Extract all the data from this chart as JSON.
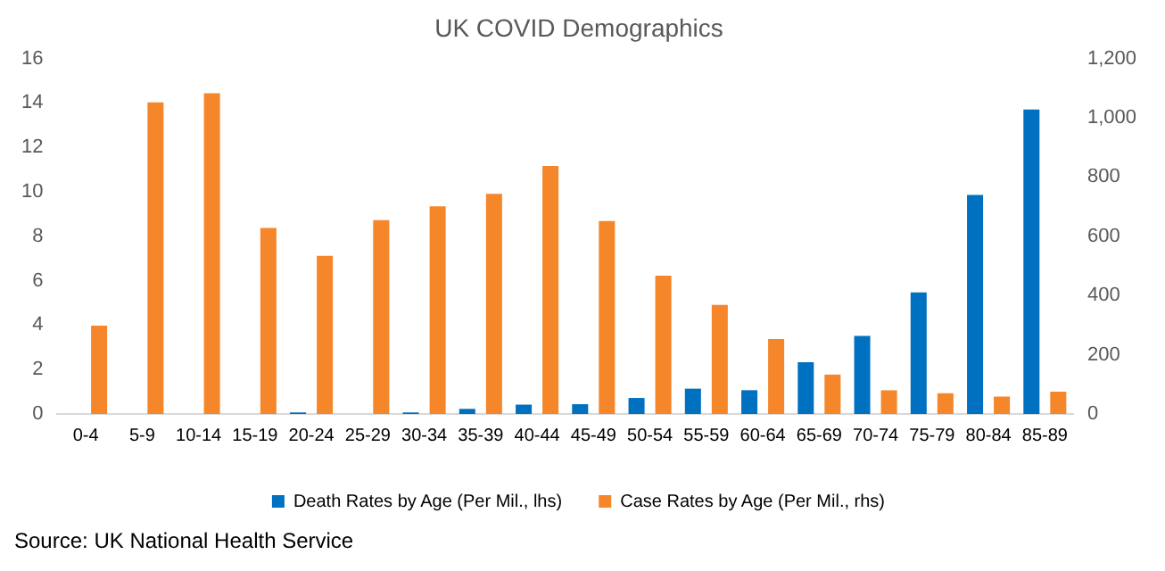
{
  "chart_data": {
    "type": "bar",
    "title": "UK COVID Demographics",
    "categories": [
      "0-4",
      "5-9",
      "10-14",
      "15-19",
      "20-24",
      "25-29",
      "30-34",
      "35-39",
      "40-44",
      "45-49",
      "50-54",
      "55-59",
      "60-64",
      "65-69",
      "70-74",
      "75-79",
      "80-84",
      "85-89"
    ],
    "series": [
      {
        "name": "Death Rates by Age (Per Mil., lhs)",
        "color": "#0070c0",
        "values": [
          0,
          0,
          0,
          0,
          0.07,
          0,
          0.07,
          0.23,
          0.42,
          0.44,
          0.72,
          1.14,
          1.07,
          2.33,
          3.51,
          5.47,
          9.86,
          13.7
        ]
      },
      {
        "name": "Case Rates by Age (Per Mil., rhs)",
        "color": "#f5862a",
        "axis": "y2",
        "values": [
          298,
          1052,
          1083,
          628,
          534,
          654,
          701,
          743,
          837,
          651,
          467,
          368,
          253,
          133,
          80,
          70,
          59,
          75
        ]
      }
    ],
    "ylim": [
      0,
      16
    ],
    "yticks": [
      0,
      2,
      4,
      6,
      8,
      10,
      12,
      14,
      16
    ],
    "y2lim": [
      0,
      1200
    ],
    "y2ticks": [
      0,
      200,
      400,
      600,
      800,
      {
        "value": 1000,
        "label": "1,000"
      },
      {
        "value": 1200,
        "label": "1,200"
      }
    ],
    "grid": false,
    "legend": "bottom",
    "annotations": [
      "Source: UK National Health Service"
    ]
  }
}
